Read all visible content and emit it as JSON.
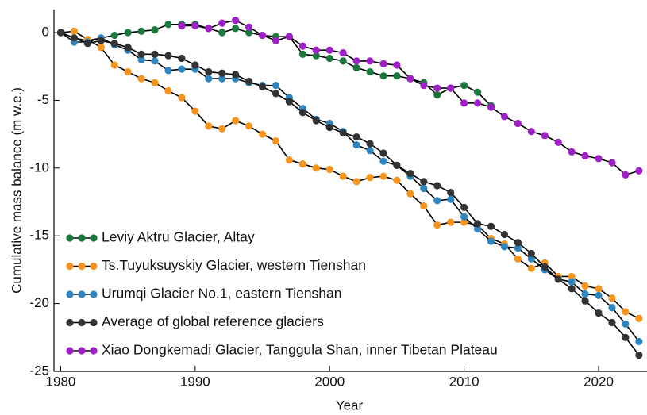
{
  "chart_data": {
    "type": "line",
    "x_label": "Year",
    "y_label": "Cumulative mass balance (m w.e.)",
    "x": [
      1980,
      1981,
      1982,
      1983,
      1984,
      1985,
      1986,
      1987,
      1988,
      1989,
      1990,
      1991,
      1992,
      1993,
      1994,
      1995,
      1996,
      1997,
      1998,
      1999,
      2000,
      2001,
      2002,
      2003,
      2004,
      2005,
      2006,
      2007,
      2008,
      2009,
      2010,
      2011,
      2012,
      2013,
      2014,
      2015,
      2016,
      2017,
      2018,
      2019,
      2020,
      2021,
      2022,
      2023
    ],
    "xlim": [
      1979.5,
      2023.6
    ],
    "xticks": [
      1980,
      1990,
      2000,
      2010,
      2020
    ],
    "ylim": [
      -25,
      1.7
    ],
    "yticks": [
      0,
      -5,
      -10,
      -15,
      -20,
      -25
    ],
    "legend": "lower left",
    "series": [
      {
        "name": "Leviy Aktru Glacier, Altay",
        "color": "#1a7a3c",
        "values": [
          0,
          -0.4,
          -0.6,
          -0.4,
          -0.2,
          0.0,
          0.1,
          0.2,
          0.6,
          0.6,
          0.6,
          0.3,
          0.0,
          0.3,
          0.0,
          -0.2,
          -0.3,
          -0.3,
          -1.6,
          -1.7,
          -1.9,
          -2.1,
          -2.6,
          -2.9,
          -3.2,
          -3.2,
          -3.4,
          -3.7,
          -4.6,
          -4.1,
          -3.9,
          -4.4,
          -5.4,
          null,
          null,
          null,
          null,
          null,
          null,
          null,
          null,
          null,
          null,
          null
        ]
      },
      {
        "name": "Ts.Tuyuksuyskiy Glacier, western Tienshan",
        "color": "#f7941d",
        "values": [
          0,
          0.1,
          -0.5,
          -1.1,
          -2.4,
          -2.9,
          -3.4,
          -3.7,
          -4.3,
          -4.8,
          -5.8,
          -6.9,
          -7.1,
          -6.5,
          -6.9,
          -7.5,
          -8.0,
          -9.4,
          -9.7,
          -10.0,
          -10.1,
          -10.6,
          -11.0,
          -10.7,
          -10.6,
          -10.9,
          -11.9,
          -12.8,
          -14.2,
          -14.0,
          -14.0,
          -14.2,
          -15.2,
          -15.6,
          -16.7,
          -17.4,
          -17.0,
          -18.0,
          -18.0,
          -18.7,
          -18.9,
          -19.6,
          -20.6,
          -21.1
        ]
      },
      {
        "name": "Urumqi Glacier No.1, eastern Tienshan",
        "color": "#2e86c1",
        "values": [
          0,
          -0.7,
          -0.7,
          -0.4,
          -0.9,
          -1.3,
          -2.0,
          -2.1,
          -2.8,
          -2.7,
          -2.7,
          -3.4,
          -3.4,
          -3.4,
          -3.7,
          -3.9,
          -3.9,
          -4.8,
          -5.6,
          -6.4,
          -6.7,
          -7.3,
          -8.3,
          -8.7,
          -9.5,
          -9.8,
          -10.6,
          -11.5,
          -12.4,
          -12.3,
          -13.6,
          -14.5,
          -15.4,
          -15.8,
          -15.9,
          -16.7,
          -17.5,
          -18.2,
          -18.4,
          -19.3,
          -19.4,
          -20.3,
          -21.5,
          -22.8
        ]
      },
      {
        "name": "Average of global reference glaciers",
        "color": "#333333",
        "values": [
          0,
          -0.4,
          -0.8,
          -0.6,
          -0.8,
          -1.1,
          -1.6,
          -1.6,
          -1.7,
          -1.9,
          -2.4,
          -2.9,
          -3.0,
          -3.1,
          -3.6,
          -4.0,
          -4.5,
          -5.1,
          -5.9,
          -6.5,
          -7.0,
          -7.4,
          -7.7,
          -8.2,
          -8.9,
          -9.8,
          -10.4,
          -11.0,
          -11.3,
          -11.8,
          -12.9,
          -14.1,
          -14.3,
          -14.9,
          -15.5,
          -16.3,
          -17.3,
          -18.2,
          -18.9,
          -19.8,
          -20.7,
          -21.4,
          -22.5,
          -23.8
        ]
      },
      {
        "name": "Xiao Dongkemadi Glacier, Tanggula Shan, inner Tibetan Plateau",
        "color": "#a020c8",
        "values": [
          null,
          null,
          null,
          null,
          null,
          null,
          null,
          null,
          null,
          0.5,
          0.5,
          0.3,
          0.7,
          0.9,
          0.4,
          -0.2,
          -0.6,
          -0.3,
          -1.0,
          -1.3,
          -1.3,
          -1.5,
          -2.1,
          -2.1,
          -2.3,
          -2.4,
          -3.4,
          -3.9,
          -4.1,
          -4.1,
          -5.2,
          -5.2,
          -5.5,
          -6.2,
          -6.7,
          -7.3,
          -7.6,
          -8.1,
          -8.8,
          -9.1,
          -9.3,
          -9.6,
          -10.5,
          -10.2
        ]
      }
    ]
  }
}
